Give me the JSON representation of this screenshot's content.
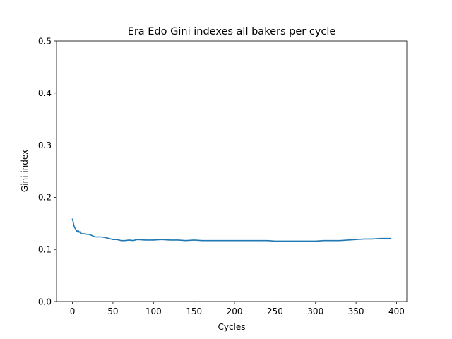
{
  "chart_data": {
    "type": "line",
    "title": "Era Edo Gini indexes all bakers per cycle",
    "xlabel": "Cycles",
    "ylabel": "Gini index",
    "xlim": [
      -19.65,
      412.65
    ],
    "ylim": [
      0.0,
      0.5
    ],
    "xticks": [
      0,
      50,
      100,
      150,
      200,
      250,
      300,
      350,
      400
    ],
    "yticks": [
      0.0,
      0.1,
      0.2,
      0.3,
      0.4,
      0.5
    ],
    "xtick_labels": [
      "0",
      "50",
      "100",
      "150",
      "200",
      "250",
      "300",
      "350",
      "400"
    ],
    "ytick_labels": [
      "0.0",
      "0.1",
      "0.2",
      "0.3",
      "0.4",
      "0.5"
    ],
    "grid": false,
    "line_color": "#1f77b4",
    "series": [
      {
        "x": [
          0,
          1,
          2,
          3,
          4,
          5,
          6,
          7,
          8,
          9,
          10,
          12,
          15,
          18,
          20,
          22,
          25,
          28,
          30,
          35,
          40,
          45,
          50,
          55,
          60,
          65,
          70,
          75,
          80,
          90,
          100,
          110,
          120,
          130,
          140,
          150,
          160,
          170,
          180,
          190,
          200,
          210,
          220,
          230,
          240,
          250,
          260,
          270,
          280,
          290,
          300,
          310,
          320,
          330,
          340,
          350,
          360,
          370,
          380,
          393
        ],
        "y": [
          0.158,
          0.152,
          0.145,
          0.141,
          0.139,
          0.136,
          0.134,
          0.137,
          0.133,
          0.134,
          0.131,
          0.13,
          0.13,
          0.129,
          0.129,
          0.128,
          0.126,
          0.124,
          0.124,
          0.124,
          0.123,
          0.121,
          0.119,
          0.119,
          0.117,
          0.117,
          0.118,
          0.117,
          0.119,
          0.118,
          0.118,
          0.119,
          0.118,
          0.118,
          0.117,
          0.118,
          0.117,
          0.117,
          0.117,
          0.117,
          0.117,
          0.117,
          0.117,
          0.117,
          0.117,
          0.116,
          0.116,
          0.116,
          0.116,
          0.116,
          0.116,
          0.117,
          0.117,
          0.117,
          0.118,
          0.119,
          0.12,
          0.12,
          0.121,
          0.121
        ]
      }
    ]
  }
}
